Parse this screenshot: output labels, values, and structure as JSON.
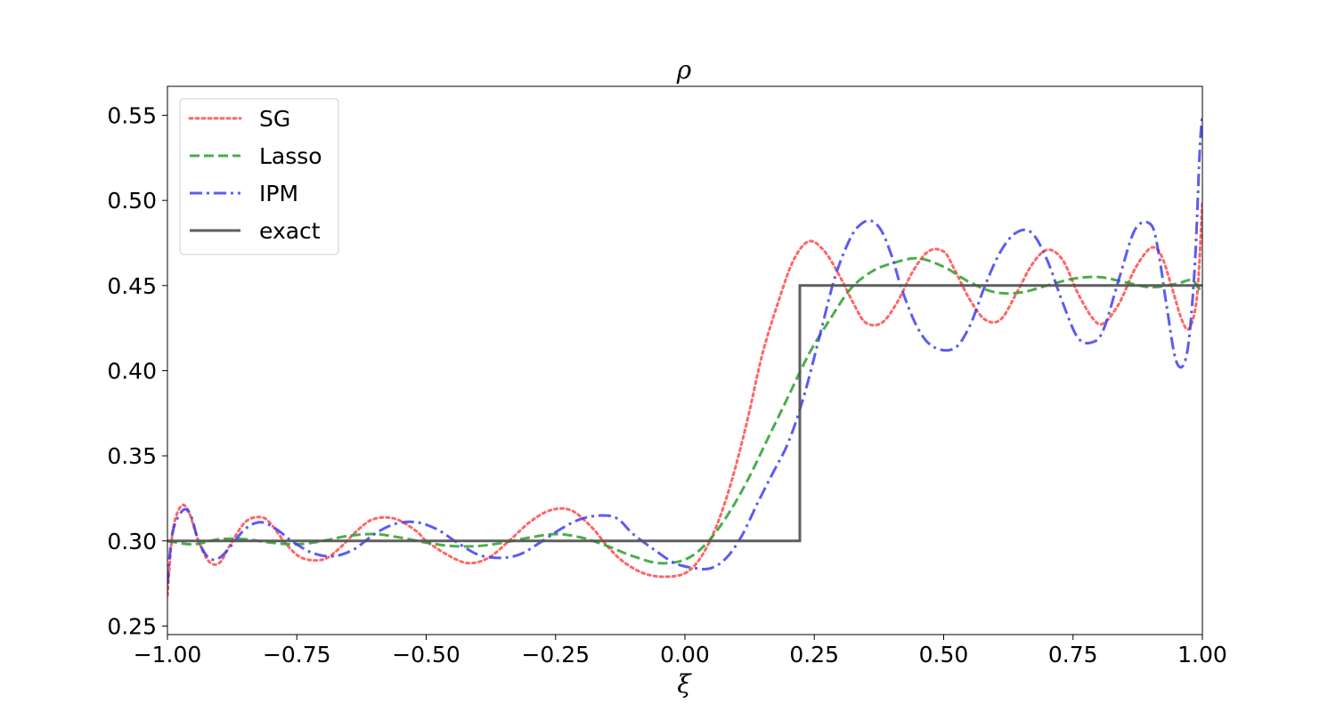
{
  "chart_data": {
    "type": "line",
    "title": "ρ",
    "xlabel": "ξ",
    "ylabel": "",
    "xlim": [
      -1.0,
      1.0
    ],
    "ylim": [
      0.245,
      0.567
    ],
    "xticks": [
      -1.0,
      -0.75,
      -0.5,
      -0.25,
      0.0,
      0.25,
      0.5,
      0.75,
      1.0
    ],
    "xtick_labels": [
      "−1.00",
      "−0.75",
      "−0.50",
      "−0.25",
      "0.00",
      "0.25",
      "0.50",
      "0.75",
      "1.00"
    ],
    "yticks": [
      0.25,
      0.3,
      0.35,
      0.4,
      0.45,
      0.5,
      0.55
    ],
    "ytick_labels": [
      "0.25",
      "0.30",
      "0.35",
      "0.40",
      "0.45",
      "0.50",
      "0.55"
    ],
    "grid": false,
    "legend_position": "top-left",
    "series": [
      {
        "name": "SG",
        "color": "#ff4b4b",
        "dash": "dotted",
        "x": [
          -1.0,
          -0.99,
          -0.975,
          -0.96,
          -0.94,
          -0.92,
          -0.9,
          -0.88,
          -0.85,
          -0.82,
          -0.8,
          -0.77,
          -0.74,
          -0.7,
          -0.67,
          -0.63,
          -0.6,
          -0.56,
          -0.52,
          -0.5,
          -0.46,
          -0.42,
          -0.38,
          -0.34,
          -0.3,
          -0.26,
          -0.22,
          -0.18,
          -0.15,
          -0.12,
          -0.08,
          -0.04,
          0.0,
          0.03,
          0.06,
          0.09,
          0.12,
          0.15,
          0.18,
          0.21,
          0.24,
          0.27,
          0.3,
          0.33,
          0.35,
          0.38,
          0.41,
          0.44,
          0.47,
          0.5,
          0.52,
          0.55,
          0.58,
          0.61,
          0.64,
          0.67,
          0.7,
          0.73,
          0.76,
          0.79,
          0.81,
          0.84,
          0.87,
          0.9,
          0.92,
          0.94,
          0.96,
          0.975,
          0.99,
          1.0
        ],
        "y": [
          0.268,
          0.305,
          0.32,
          0.318,
          0.3,
          0.288,
          0.287,
          0.297,
          0.311,
          0.314,
          0.31,
          0.298,
          0.29,
          0.289,
          0.295,
          0.307,
          0.313,
          0.313,
          0.306,
          0.3,
          0.292,
          0.287,
          0.29,
          0.3,
          0.311,
          0.318,
          0.318,
          0.308,
          0.297,
          0.288,
          0.281,
          0.279,
          0.281,
          0.29,
          0.308,
          0.335,
          0.37,
          0.41,
          0.44,
          0.465,
          0.476,
          0.47,
          0.455,
          0.437,
          0.428,
          0.428,
          0.44,
          0.458,
          0.47,
          0.47,
          0.46,
          0.442,
          0.43,
          0.43,
          0.445,
          0.462,
          0.471,
          0.465,
          0.445,
          0.43,
          0.428,
          0.44,
          0.46,
          0.472,
          0.468,
          0.45,
          0.43,
          0.425,
          0.445,
          0.5
        ]
      },
      {
        "name": "Lasso",
        "color": "#2ca02c",
        "dash": "dashed",
        "x": [
          -1.0,
          -0.95,
          -0.9,
          -0.85,
          -0.8,
          -0.75,
          -0.7,
          -0.65,
          -0.6,
          -0.55,
          -0.5,
          -0.45,
          -0.4,
          -0.35,
          -0.3,
          -0.25,
          -0.2,
          -0.15,
          -0.1,
          -0.05,
          0.0,
          0.04,
          0.08,
          0.12,
          0.16,
          0.2,
          0.24,
          0.28,
          0.32,
          0.36,
          0.4,
          0.45,
          0.5,
          0.55,
          0.6,
          0.65,
          0.7,
          0.75,
          0.8,
          0.85,
          0.9,
          0.95,
          0.98,
          1.0
        ],
        "y": [
          0.3,
          0.298,
          0.301,
          0.301,
          0.299,
          0.298,
          0.3,
          0.303,
          0.304,
          0.302,
          0.299,
          0.297,
          0.297,
          0.299,
          0.302,
          0.304,
          0.302,
          0.297,
          0.291,
          0.287,
          0.289,
          0.298,
          0.314,
          0.335,
          0.36,
          0.385,
          0.41,
          0.43,
          0.448,
          0.458,
          0.463,
          0.466,
          0.461,
          0.452,
          0.446,
          0.446,
          0.45,
          0.454,
          0.455,
          0.452,
          0.449,
          0.451,
          0.453,
          0.445
        ]
      },
      {
        "name": "IPM",
        "color": "#3f3ff0",
        "dash": "dashdot",
        "x": [
          -1.0,
          -0.99,
          -0.97,
          -0.955,
          -0.94,
          -0.92,
          -0.9,
          -0.88,
          -0.85,
          -0.82,
          -0.79,
          -0.76,
          -0.72,
          -0.68,
          -0.64,
          -0.6,
          -0.56,
          -0.52,
          -0.48,
          -0.44,
          -0.4,
          -0.36,
          -0.32,
          -0.28,
          -0.24,
          -0.2,
          -0.16,
          -0.13,
          -0.1,
          -0.06,
          -0.02,
          0.02,
          0.05,
          0.08,
          0.11,
          0.14,
          0.17,
          0.2,
          0.23,
          0.26,
          0.29,
          0.32,
          0.34,
          0.36,
          0.38,
          0.4,
          0.42,
          0.45,
          0.48,
          0.52,
          0.55,
          0.58,
          0.61,
          0.64,
          0.67,
          0.7,
          0.73,
          0.76,
          0.79,
          0.81,
          0.84,
          0.87,
          0.9,
          0.915,
          0.93,
          0.95,
          0.97,
          0.985,
          0.995,
          1.0
        ],
        "y": [
          0.275,
          0.305,
          0.318,
          0.315,
          0.3,
          0.29,
          0.29,
          0.296,
          0.307,
          0.311,
          0.307,
          0.3,
          0.293,
          0.291,
          0.295,
          0.304,
          0.31,
          0.311,
          0.307,
          0.299,
          0.292,
          0.29,
          0.292,
          0.299,
          0.307,
          0.313,
          0.315,
          0.313,
          0.304,
          0.295,
          0.287,
          0.284,
          0.284,
          0.29,
          0.303,
          0.322,
          0.34,
          0.358,
          0.385,
          0.42,
          0.455,
          0.478,
          0.486,
          0.488,
          0.482,
          0.467,
          0.447,
          0.425,
          0.414,
          0.413,
          0.426,
          0.45,
          0.47,
          0.481,
          0.481,
          0.465,
          0.44,
          0.419,
          0.417,
          0.425,
          0.455,
          0.483,
          0.486,
          0.47,
          0.44,
          0.405,
          0.41,
          0.46,
          0.53,
          0.55
        ]
      },
      {
        "name": "exact",
        "color": "#555555",
        "dash": "solid",
        "x": [
          -1.0,
          0.222,
          0.222,
          1.0
        ],
        "y": [
          0.3,
          0.3,
          0.45,
          0.45
        ]
      }
    ]
  }
}
